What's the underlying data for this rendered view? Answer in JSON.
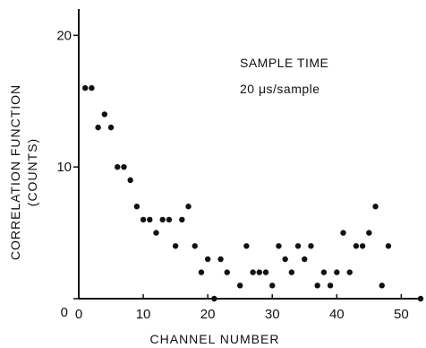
{
  "chart_data": {
    "type": "scatter",
    "title": "",
    "xlabel": "CHANNEL NUMBER",
    "ylabel_line1": "CORRELATION FUNCTION",
    "ylabel_line2": "(COUNTS)",
    "xlim": [
      0,
      53
    ],
    "ylim": [
      0,
      22
    ],
    "x_ticks": [
      {
        "value": 0,
        "label": "0"
      },
      {
        "value": 10,
        "label": "10"
      },
      {
        "value": 20,
        "label": "20"
      },
      {
        "value": 30,
        "label": "30"
      },
      {
        "value": 40,
        "label": "40"
      },
      {
        "value": 50,
        "label": "50"
      }
    ],
    "y_ticks": [
      {
        "value": 0,
        "label": "0"
      },
      {
        "value": 10,
        "label": "10"
      },
      {
        "value": 20,
        "label": "20"
      }
    ],
    "annotation_line1": "SAMPLE TIME",
    "annotation_line2": "20 μs/sample",
    "grid": false,
    "legend": "none",
    "points": [
      {
        "x": 1,
        "y": 16
      },
      {
        "x": 2,
        "y": 16
      },
      {
        "x": 3,
        "y": 13
      },
      {
        "x": 4,
        "y": 14
      },
      {
        "x": 5,
        "y": 13
      },
      {
        "x": 6,
        "y": 10
      },
      {
        "x": 7,
        "y": 10
      },
      {
        "x": 8,
        "y": 9
      },
      {
        "x": 9,
        "y": 7
      },
      {
        "x": 10,
        "y": 6
      },
      {
        "x": 11,
        "y": 6
      },
      {
        "x": 12,
        "y": 5
      },
      {
        "x": 13,
        "y": 6
      },
      {
        "x": 14,
        "y": 6
      },
      {
        "x": 15,
        "y": 4
      },
      {
        "x": 16,
        "y": 6
      },
      {
        "x": 17,
        "y": 7
      },
      {
        "x": 18,
        "y": 4
      },
      {
        "x": 19,
        "y": 2
      },
      {
        "x": 20,
        "y": 3
      },
      {
        "x": 21,
        "y": 0
      },
      {
        "x": 22,
        "y": 3
      },
      {
        "x": 23,
        "y": 2
      },
      {
        "x": 25,
        "y": 1
      },
      {
        "x": 26,
        "y": 4
      },
      {
        "x": 27,
        "y": 2
      },
      {
        "x": 28,
        "y": 2
      },
      {
        "x": 29,
        "y": 2
      },
      {
        "x": 30,
        "y": 1
      },
      {
        "x": 31,
        "y": 4
      },
      {
        "x": 32,
        "y": 3
      },
      {
        "x": 33,
        "y": 2
      },
      {
        "x": 34,
        "y": 4
      },
      {
        "x": 35,
        "y": 3
      },
      {
        "x": 36,
        "y": 4
      },
      {
        "x": 37,
        "y": 1
      },
      {
        "x": 38,
        "y": 2
      },
      {
        "x": 39,
        "y": 1
      },
      {
        "x": 40,
        "y": 2
      },
      {
        "x": 41,
        "y": 5
      },
      {
        "x": 42,
        "y": 2
      },
      {
        "x": 43,
        "y": 4
      },
      {
        "x": 44,
        "y": 4
      },
      {
        "x": 45,
        "y": 5
      },
      {
        "x": 46,
        "y": 7
      },
      {
        "x": 47,
        "y": 1
      },
      {
        "x": 48,
        "y": 4
      },
      {
        "x": 53,
        "y": 0
      }
    ]
  }
}
